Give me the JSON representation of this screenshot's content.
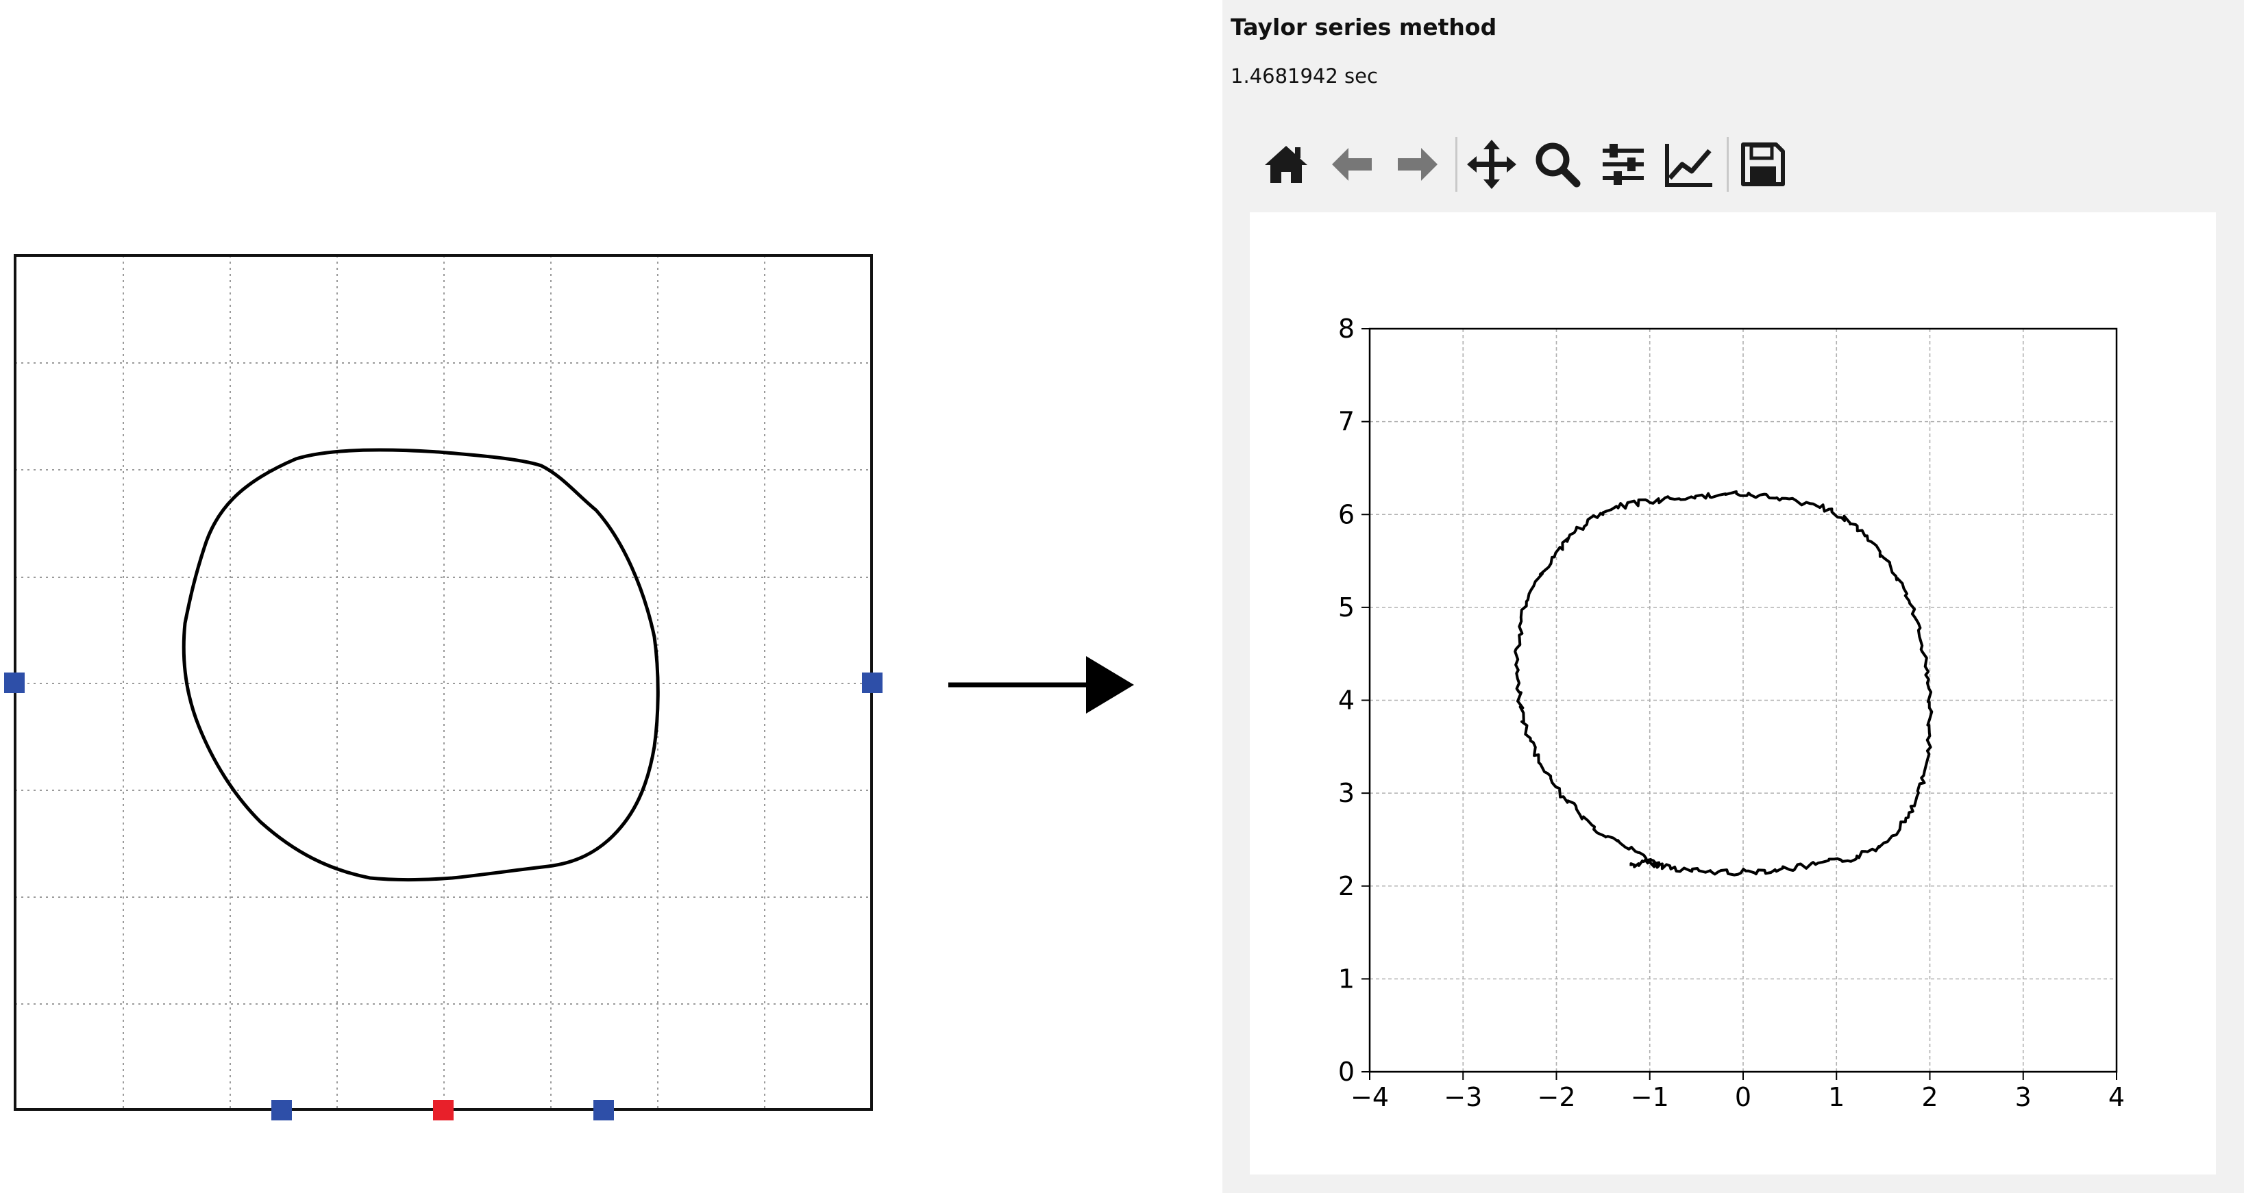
{
  "panel": {
    "title": "Taylor series method",
    "time": "1.4681942 sec"
  },
  "toolbar": {
    "items": [
      {
        "name": "home",
        "icon": "home-icon"
      },
      {
        "name": "back",
        "icon": "arrow-left-icon"
      },
      {
        "name": "forward",
        "icon": "arrow-right-icon"
      },
      {
        "name": "pan",
        "icon": "move-icon"
      },
      {
        "name": "zoom",
        "icon": "search-icon"
      },
      {
        "name": "configure-subplots",
        "icon": "sliders-icon"
      },
      {
        "name": "edit-axes",
        "icon": "line-chart-icon"
      },
      {
        "name": "save",
        "icon": "floppy-disk-icon"
      }
    ]
  },
  "drawing": {
    "marker_color": "#2e4fa8",
    "active_marker_color": "#e8202a"
  },
  "chart_data": {
    "type": "line",
    "title": "",
    "xlabel": "",
    "ylabel": "",
    "xlim": [
      -4,
      4
    ],
    "ylim": [
      0,
      8
    ],
    "xticks": [
      -4,
      -3,
      -2,
      -1,
      0,
      1,
      2,
      3,
      4
    ],
    "yticks": [
      0,
      1,
      2,
      3,
      4,
      5,
      6,
      7,
      8
    ],
    "grid": true,
    "line_color": "#000000",
    "series": [
      {
        "x": [
          -1.2,
          -1.05,
          -0.85,
          -0.6,
          -0.3,
          0.0,
          0.3,
          0.6,
          0.9,
          1.2,
          1.45,
          1.65,
          1.82,
          1.95,
          2.0,
          2.0,
          1.95,
          1.85,
          1.7,
          1.5,
          1.3,
          1.1,
          0.85,
          0.55,
          0.25,
          -0.05,
          -0.35,
          -0.65,
          -0.95,
          -1.25,
          -1.55,
          -1.8,
          -2.0,
          -2.2,
          -2.35,
          -2.42,
          -2.42,
          -2.35,
          -2.2,
          -2.0,
          -1.78,
          -1.55,
          -1.3,
          -1.05,
          -0.9
        ],
        "y": [
          2.22,
          2.25,
          2.22,
          2.17,
          2.15,
          2.15,
          2.17,
          2.2,
          2.25,
          2.3,
          2.42,
          2.6,
          2.85,
          3.2,
          3.6,
          4.0,
          4.45,
          4.9,
          5.25,
          5.55,
          5.78,
          5.95,
          6.08,
          6.15,
          6.2,
          6.22,
          6.2,
          6.18,
          6.15,
          6.1,
          6.0,
          5.82,
          5.6,
          5.3,
          4.95,
          4.55,
          4.15,
          3.75,
          3.38,
          3.05,
          2.8,
          2.6,
          2.45,
          2.3,
          2.22
        ]
      }
    ]
  }
}
